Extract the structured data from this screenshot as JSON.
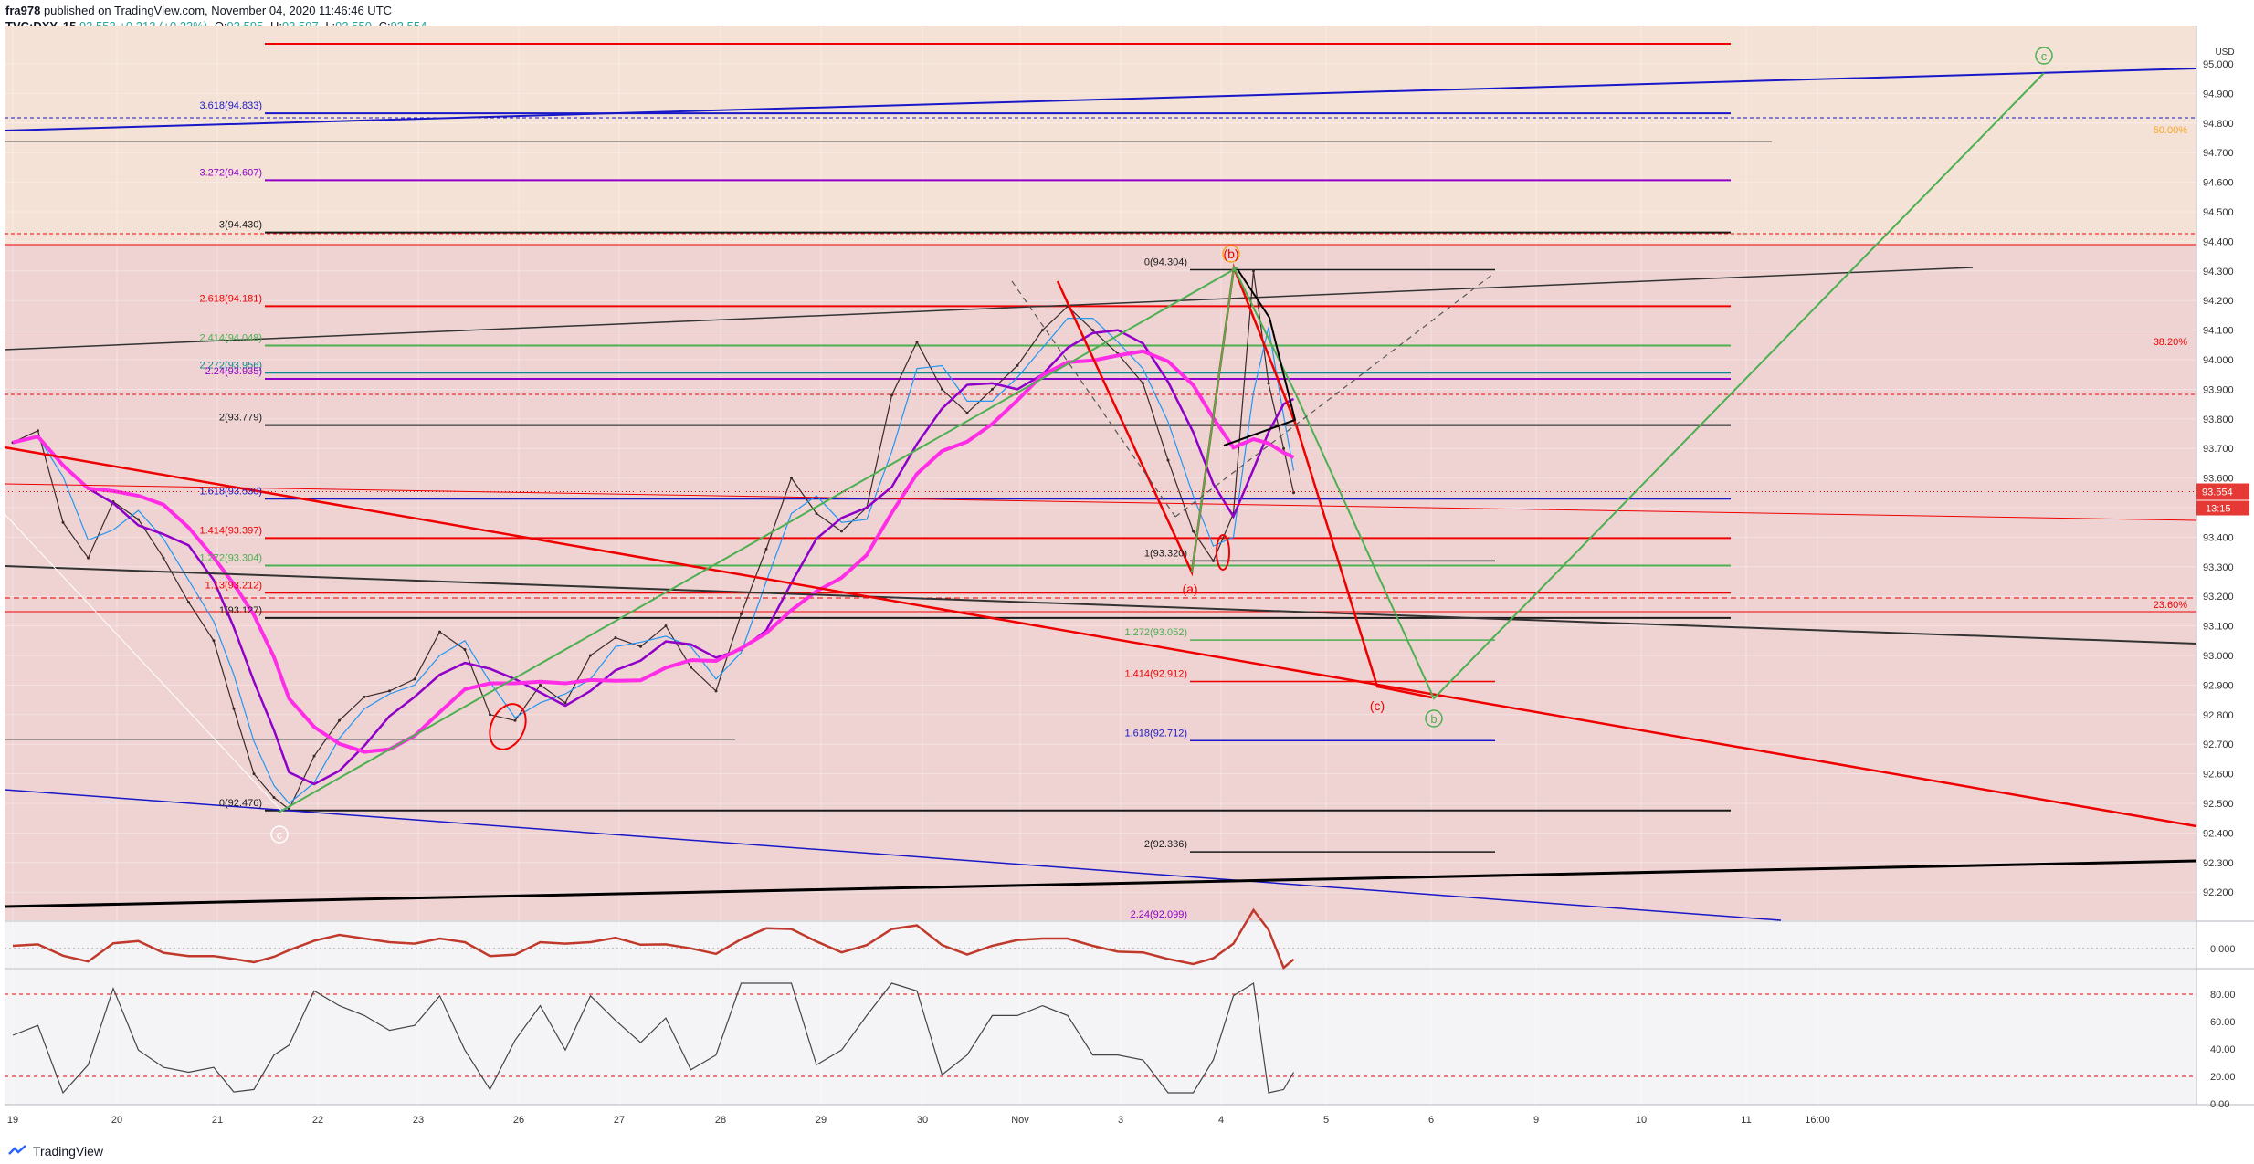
{
  "header": {
    "line1_user": "fra978",
    "line1_rest": "published on TradingView.com, November 04, 2020 11:46:46 UTC",
    "symbol": "TVC:DXY, 15",
    "last": "93.553",
    "change": "+0.213 (+0.23%)",
    "o_label": "O:",
    "o": "93.595",
    "h_label": "H:",
    "h": "93.597",
    "l_label": "L:",
    "l": "93.550",
    "c_label": "C:",
    "c": "93.554"
  },
  "footer": {
    "brand": "TradingView"
  },
  "colors": {
    "bg_upper": "#f5e2d6",
    "bg_lower": "#efd3d3",
    "red": "#ef0000",
    "green": "#4caf50",
    "blue": "#1818c8",
    "purple": "#8f00c8",
    "magenta": "#ff2ee6",
    "black": "#1a1a1a",
    "price_tag": "#e53935"
  },
  "chart_data": {
    "type": "line",
    "title": "",
    "instrument": "TVC:DXY",
    "timeframe": "15",
    "currency_label": "USD",
    "ylim": [
      92.1,
      95.1
    ],
    "grid": true,
    "last_price_label": "93.554",
    "countdown_label": "13:15",
    "y_tick_labels": [
      "95.000",
      "94.900",
      "94.800",
      "94.700",
      "94.600",
      "94.500",
      "94.400",
      "94.300",
      "94.200",
      "94.100",
      "94.000",
      "93.900",
      "93.800",
      "93.700",
      "93.600",
      "93.500",
      "93.400",
      "93.300",
      "93.200",
      "93.100",
      "93.000",
      "92.900",
      "92.800",
      "92.700",
      "92.600",
      "92.500",
      "92.400",
      "92.300",
      "92.200"
    ],
    "x_tick_labels": [
      "19",
      "20",
      "21",
      "22",
      "23",
      "26",
      "27",
      "28",
      "29",
      "30",
      "Nov",
      "3",
      "4",
      "5",
      "6",
      "9",
      "10",
      "11",
      "16:00"
    ],
    "price_path": [
      [
        0,
        93.72
      ],
      [
        0.25,
        93.76
      ],
      [
        0.5,
        93.45
      ],
      [
        0.75,
        93.33
      ],
      [
        1.0,
        93.52
      ],
      [
        1.25,
        93.46
      ],
      [
        1.5,
        93.33
      ],
      [
        1.75,
        93.18
      ],
      [
        2.0,
        93.05
      ],
      [
        2.2,
        92.82
      ],
      [
        2.4,
        92.6
      ],
      [
        2.6,
        92.52
      ],
      [
        2.75,
        92.48
      ],
      [
        3.0,
        92.66
      ],
      [
        3.25,
        92.78
      ],
      [
        3.5,
        92.86
      ],
      [
        3.75,
        92.88
      ],
      [
        4.0,
        92.92
      ],
      [
        4.25,
        93.08
      ],
      [
        4.5,
        93.02
      ],
      [
        4.75,
        92.8
      ],
      [
        5.0,
        92.78
      ],
      [
        5.25,
        92.9
      ],
      [
        5.5,
        92.84
      ],
      [
        5.75,
        93.0
      ],
      [
        6.0,
        93.06
      ],
      [
        6.25,
        93.03
      ],
      [
        6.5,
        93.1
      ],
      [
        6.75,
        92.96
      ],
      [
        7.0,
        92.88
      ],
      [
        7.25,
        93.14
      ],
      [
        7.5,
        93.36
      ],
      [
        7.75,
        93.6
      ],
      [
        8.0,
        93.48
      ],
      [
        8.25,
        93.42
      ],
      [
        8.5,
        93.5
      ],
      [
        8.75,
        93.88
      ],
      [
        9.0,
        94.06
      ],
      [
        9.25,
        93.9
      ],
      [
        9.5,
        93.82
      ],
      [
        9.75,
        93.9
      ],
      [
        10.0,
        93.98
      ],
      [
        10.25,
        94.1
      ],
      [
        10.5,
        94.18
      ],
      [
        10.75,
        94.1
      ],
      [
        11.0,
        94.02
      ],
      [
        11.25,
        93.92
      ],
      [
        11.5,
        93.66
      ],
      [
        11.75,
        93.42
      ],
      [
        11.95,
        93.32
      ],
      [
        12.15,
        93.48
      ],
      [
        12.35,
        94.3
      ],
      [
        12.5,
        93.92
      ],
      [
        12.65,
        93.7
      ],
      [
        12.75,
        93.55
      ]
    ],
    "rsi_ticks": [
      "80.00",
      "60.00",
      "40.00",
      "20.00",
      "0.00"
    ],
    "macd_tick": "0.000",
    "overlay_labels": {
      "fib_left": [
        {
          "text": "3.618(94.833)",
          "price": 94.833,
          "color": "#1818c8"
        },
        {
          "text": "3.272(94.607)",
          "price": 94.607,
          "color": "#8f00c8"
        },
        {
          "text": "3(94.430)",
          "price": 94.43,
          "color": "#1a1a1a"
        },
        {
          "text": "2.618(94.181)",
          "price": 94.181,
          "color": "#ef0000"
        },
        {
          "text": "2.414(94.048)",
          "price": 94.048,
          "color": "#4caf50"
        },
        {
          "text": "2.272(93.956)",
          "price": 93.956,
          "color": "#0a8a8a"
        },
        {
          "text": "2.24(93.935)",
          "price": 93.935,
          "color": "#8f00c8"
        },
        {
          "text": "2(93.779)",
          "price": 93.779,
          "color": "#1a1a1a"
        },
        {
          "text": "1.618(93.530)",
          "price": 93.53,
          "color": "#1818c8"
        },
        {
          "text": "1.414(93.397)",
          "price": 93.397,
          "color": "#ef0000"
        },
        {
          "text": "1.272(93.304)",
          "price": 93.304,
          "color": "#4caf50"
        },
        {
          "text": "1.13(93.212)",
          "price": 93.212,
          "color": "#ef0000"
        },
        {
          "text": "1(93.127)",
          "price": 93.127,
          "color": "#1a1a1a"
        },
        {
          "text": "0(92.476)",
          "price": 92.476,
          "color": "#1a1a1a"
        }
      ],
      "fib_right": [
        {
          "text": "0(94.304)",
          "price": 94.304,
          "color": "#1a1a1a"
        },
        {
          "text": "1(93.320)",
          "price": 93.32,
          "color": "#1a1a1a"
        },
        {
          "text": "1.272(93.052)",
          "price": 93.052,
          "color": "#4caf50"
        },
        {
          "text": "1.414(92.912)",
          "price": 92.912,
          "color": "#ef0000"
        },
        {
          "text": "1.618(92.712)",
          "price": 92.712,
          "color": "#1818c8"
        },
        {
          "text": "2(92.336)",
          "price": 92.336,
          "color": "#1a1a1a"
        },
        {
          "text": "2.24(92.099)",
          "price": 92.099,
          "color": "#8f00c8"
        }
      ],
      "pct_labels": [
        "50.00%",
        "38.20%",
        "23.60%"
      ],
      "waves": [
        "(b)",
        "(a)",
        "(c)",
        "b",
        "c",
        "c"
      ]
    }
  }
}
